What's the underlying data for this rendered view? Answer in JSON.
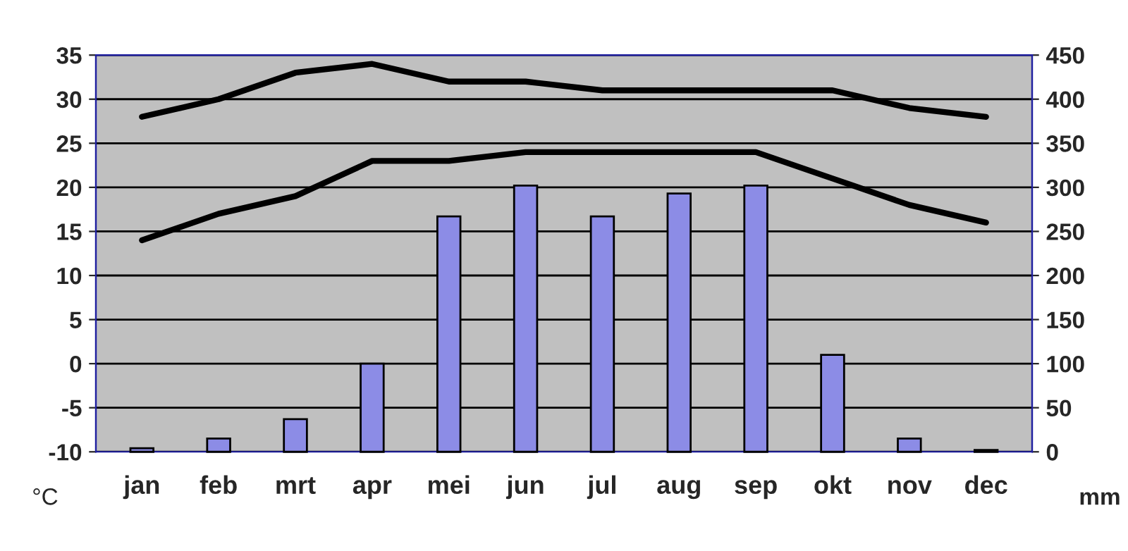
{
  "chart_data": {
    "type": "line",
    "categories": [
      "jan",
      "feb",
      "mrt",
      "apr",
      "mei",
      "jun",
      "jul",
      "aug",
      "sep",
      "okt",
      "nov",
      "dec"
    ],
    "series": [
      {
        "type": "bar",
        "axis": "y2",
        "color": "#8c8ce6",
        "values": [
          4,
          15,
          37,
          100,
          267,
          302,
          267,
          293,
          302,
          110,
          15,
          2
        ]
      },
      {
        "axis": "y",
        "color": "#000000",
        "values": [
          28,
          30,
          33,
          34,
          32,
          32,
          31,
          31,
          31,
          31,
          29,
          28
        ]
      },
      {
        "axis": "y",
        "color": "#000000",
        "values": [
          14,
          17,
          19,
          23,
          23,
          24,
          24,
          24,
          24,
          21,
          18,
          16
        ]
      }
    ],
    "ylabel": "°C",
    "y2label": "mm",
    "ylim": [
      -10,
      35
    ],
    "yticks": [
      -10,
      -5,
      0,
      5,
      10,
      15,
      20,
      25,
      30,
      35
    ],
    "y2lim": [
      0,
      450
    ],
    "y2ticks": [
      0,
      50,
      100,
      150,
      200,
      250,
      300,
      350,
      400,
      450
    ],
    "grid": "y",
    "marker": "none",
    "line_style": "solid"
  }
}
